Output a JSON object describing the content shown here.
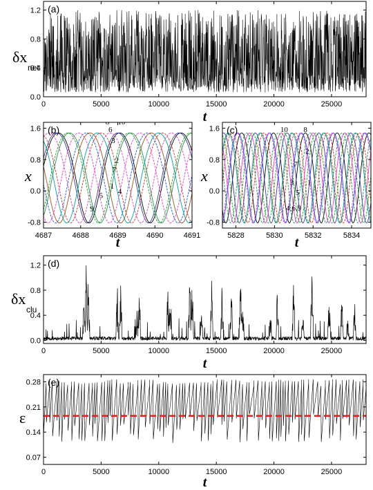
{
  "figure": {
    "panels": [
      "(a)",
      "(b)",
      "(c)",
      "(d)",
      "(e)"
    ]
  },
  "chart_data": [
    {
      "id": "a",
      "type": "line",
      "panel_label": "(a)",
      "xlabel": "t",
      "ylabel_main": "δx",
      "ylabel_sub": "net",
      "xlim": [
        0,
        28000
      ],
      "ylim": [
        0,
        1.32
      ],
      "xticks": [
        0,
        5000,
        10000,
        15000,
        20000,
        25000
      ],
      "xtick_labels": [
        "0",
        "5000",
        "10000",
        "15000",
        "20000",
        "25000"
      ],
      "yticks": [
        0.0,
        0.4,
        0.8,
        1.2
      ],
      "ytick_labels": [
        "0.0",
        "0.4",
        "0.8",
        "1.2"
      ],
      "color": "#000000",
      "signal": {
        "baseline": 0.15,
        "noise": 0.25,
        "peak_max": 1.2,
        "peak_min": 0.65,
        "peak_rate": 0.55
      }
    },
    {
      "id": "b",
      "type": "line",
      "panel_label": "(b)",
      "xlabel": "t",
      "ylabel_main": "x",
      "xlim": [
        4687,
        4691
      ],
      "ylim": [
        -0.95,
        1.75
      ],
      "xticks": [
        4687,
        4688,
        4689,
        4690,
        4691
      ],
      "xtick_labels": [
        "4687",
        "4688",
        "4689",
        "4690",
        "4691"
      ],
      "yticks": [
        -0.8,
        0.0,
        0.8,
        1.6
      ],
      "ytick_labels": [
        "-0.8",
        "0.0",
        "0.8",
        "1.6"
      ],
      "period": 1.65,
      "series": [
        {
          "label": "1",
          "color": "#000000",
          "peak_t": 4687.4
        },
        {
          "label": "2",
          "color": "#d83030",
          "peak_t": 4686.9
        },
        {
          "label": "3",
          "color": "#3a3a9a",
          "peak_t": 4689.0
        },
        {
          "label": "4",
          "color": "#e040c0",
          "peak_t": 4687.15
        },
        {
          "label": "5",
          "color": "#2e8b57",
          "peak_t": 4687.7
        },
        {
          "label": "6",
          "color": "#1a56d8",
          "peak_t": 4688.15
        },
        {
          "label": "7",
          "color": "#00a0a0",
          "peak_t": 4688.45
        },
        {
          "label": "8",
          "color": "#ff3ad0",
          "peak_t": 4687.95
        },
        {
          "label": "9",
          "color": "#a05020",
          "peak_t": 4686.6
        },
        {
          "label": "10",
          "color": "#22a022",
          "peak_t": 4689.3
        }
      ],
      "curve_labels": [
        {
          "text": "8",
          "t": 4688.72,
          "x": 1.7
        },
        {
          "text": "10",
          "t": 4689.1,
          "x": 1.7
        },
        {
          "text": "6",
          "t": 4688.8,
          "x": 1.5
        },
        {
          "text": "3",
          "t": 4688.88,
          "x": 1.22
        },
        {
          "text": "2",
          "t": 4688.98,
          "x": 0.72
        },
        {
          "text": "7",
          "t": 4688.9,
          "x": 0.48
        },
        {
          "text": "1",
          "t": 4688.85,
          "x": 0.06
        },
        {
          "text": "4",
          "t": 4689.05,
          "x": -0.08
        },
        {
          "text": "5",
          "t": 4688.55,
          "x": -0.18
        },
        {
          "text": "9",
          "t": 4688.3,
          "x": -0.52
        }
      ]
    },
    {
      "id": "c",
      "type": "line",
      "panel_label": "(c)",
      "xlabel": "t",
      "ylabel_main": "x",
      "xlim": [
        5827.3,
        5835
      ],
      "ylim": [
        -0.95,
        1.75
      ],
      "xticks": [
        5828,
        5830,
        5832,
        5834
      ],
      "xtick_labels": [
        "5828",
        "5830",
        "5832",
        "5834"
      ],
      "yticks": [
        -0.8,
        0.0,
        0.8,
        1.6
      ],
      "ytick_labels": [
        "-0.8",
        "0.0",
        "0.8",
        "1.6"
      ],
      "period": 1.65,
      "series": [
        {
          "label": "1",
          "color": "#000000",
          "peak_t": 5828.3
        },
        {
          "label": "2",
          "color": "#d83030",
          "peak_t": 5827.8
        },
        {
          "label": "3",
          "color": "#3a3a9a",
          "peak_t": 5829.0
        },
        {
          "label": "4",
          "color": "#22a022",
          "peak_t": 5830.5
        },
        {
          "label": "5",
          "color": "#e040c0",
          "peak_t": 5828.7
        },
        {
          "label": "6",
          "color": "#a05020",
          "peak_t": 5829.3
        },
        {
          "label": "7",
          "color": "#1a56d8",
          "peak_t": 5828.1
        },
        {
          "label": "8",
          "color": "#ff3ad0",
          "peak_t": 5829.7
        },
        {
          "label": "9",
          "color": "#00a0a0",
          "peak_t": 5830.9
        },
        {
          "label": "10",
          "color": "#2e8b57",
          "peak_t": 5830.2
        }
      ],
      "curve_labels": [
        {
          "text": "10",
          "t": 5830.5,
          "x": 1.5
        },
        {
          "text": "8",
          "t": 5831.6,
          "x": 1.5
        },
        {
          "text": "2",
          "t": 5831.7,
          "x": 0.95
        },
        {
          "text": "7",
          "t": 5831.1,
          "x": 0.62
        },
        {
          "text": "3",
          "t": 5830.9,
          "x": 0.15
        },
        {
          "text": "1",
          "t": 5831.8,
          "x": 0.15
        },
        {
          "text": "5",
          "t": 5831.2,
          "x": -0.1
        },
        {
          "text": "4,6,9",
          "t": 5831.0,
          "x": -0.5
        }
      ]
    },
    {
      "id": "d",
      "type": "line",
      "panel_label": "(d)",
      "xlabel": "t",
      "ylabel_main": "δx",
      "ylabel_sub": "clu",
      "xlim": [
        0,
        28000
      ],
      "ylim": [
        -0.05,
        1.35
      ],
      "xticks": [
        0,
        5000,
        10000,
        15000,
        20000,
        25000
      ],
      "xtick_labels": [
        "0",
        "5000",
        "10000",
        "15000",
        "20000",
        "25000"
      ],
      "yticks": [
        0.0,
        0.4,
        0.8,
        1.2
      ],
      "ytick_labels": [
        "0.0",
        "0.4",
        "0.8",
        "1.2"
      ],
      "color": "#000000",
      "bursts": [
        {
          "t": 3700,
          "h": 1.25
        },
        {
          "t": 3900,
          "h": 1.2
        },
        {
          "t": 3500,
          "h": 0.65
        },
        {
          "t": 6400,
          "h": 0.95
        },
        {
          "t": 6700,
          "h": 1.0
        },
        {
          "t": 8300,
          "h": 0.98
        },
        {
          "t": 8100,
          "h": 0.55
        },
        {
          "t": 10800,
          "h": 1.05
        },
        {
          "t": 11000,
          "h": 1.1
        },
        {
          "t": 12700,
          "h": 1.25
        },
        {
          "t": 12900,
          "h": 1.05
        },
        {
          "t": 14600,
          "h": 0.95
        },
        {
          "t": 15500,
          "h": 1.0
        },
        {
          "t": 16300,
          "h": 1.05
        },
        {
          "t": 17100,
          "h": 1.0
        },
        {
          "t": 17300,
          "h": 0.6
        },
        {
          "t": 20300,
          "h": 0.9
        },
        {
          "t": 21700,
          "h": 1.05
        },
        {
          "t": 23300,
          "h": 1.2
        },
        {
          "t": 24800,
          "h": 0.95
        },
        {
          "t": 25900,
          "h": 0.85
        },
        {
          "t": 27000,
          "h": 0.75
        },
        {
          "t": 13700,
          "h": 0.5
        },
        {
          "t": 19700,
          "h": 0.45
        },
        {
          "t": 22500,
          "h": 0.55
        },
        {
          "t": 26400,
          "h": 0.5
        }
      ]
    },
    {
      "id": "e",
      "type": "line",
      "panel_label": "(e)",
      "xlabel": "t",
      "ylabel_main": "ε",
      "xlim": [
        0,
        28000
      ],
      "ylim": [
        0.05,
        0.3
      ],
      "xticks": [
        0,
        5000,
        10000,
        15000,
        20000,
        25000
      ],
      "xtick_labels": [
        "0",
        "5000",
        "10000",
        "15000",
        "20000",
        "25000"
      ],
      "yticks": [
        0.07,
        0.14,
        0.21,
        0.28
      ],
      "ytick_labels": [
        "0.07",
        "0.14",
        "0.21",
        "0.28"
      ],
      "color": "#000000",
      "threshold": {
        "value": 0.185,
        "color": "#e02020",
        "style": "dashed"
      },
      "signal": {
        "max": 0.287,
        "min": 0.11,
        "sawtooth_period": 280
      }
    }
  ]
}
